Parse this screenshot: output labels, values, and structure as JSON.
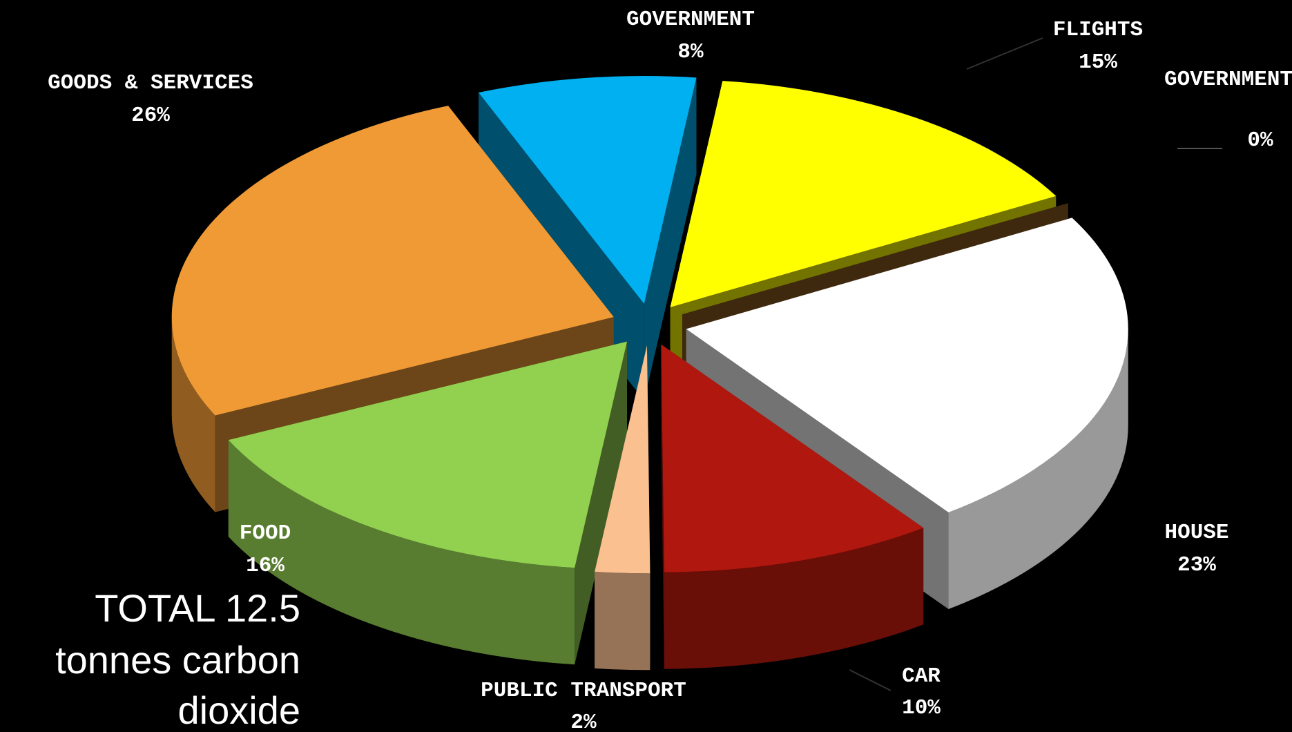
{
  "chart_data": {
    "type": "pie",
    "categories": [
      "GOVERNMENT",
      "FLIGHTS",
      "GOVERNMENT",
      "HOUSE",
      "CAR",
      "PUBLIC TRANSPORT",
      "FOOD",
      "GOODS & SERVICES"
    ],
    "values": [
      8,
      15,
      0,
      23,
      10,
      2,
      16,
      26
    ],
    "value_labels": [
      "8%",
      "15%",
      "0%",
      "23%",
      "10%",
      "2%",
      "16%",
      "26%"
    ],
    "colors": [
      "#00b0f0",
      "#ffff00",
      "#8b5a1e",
      "#ffffff",
      "#b0170e",
      "#fac090",
      "#92d050",
      "#f09a36"
    ],
    "annotation": [
      "TOTAL 12.5",
      "tonnes carbon",
      "dioxide"
    ]
  }
}
